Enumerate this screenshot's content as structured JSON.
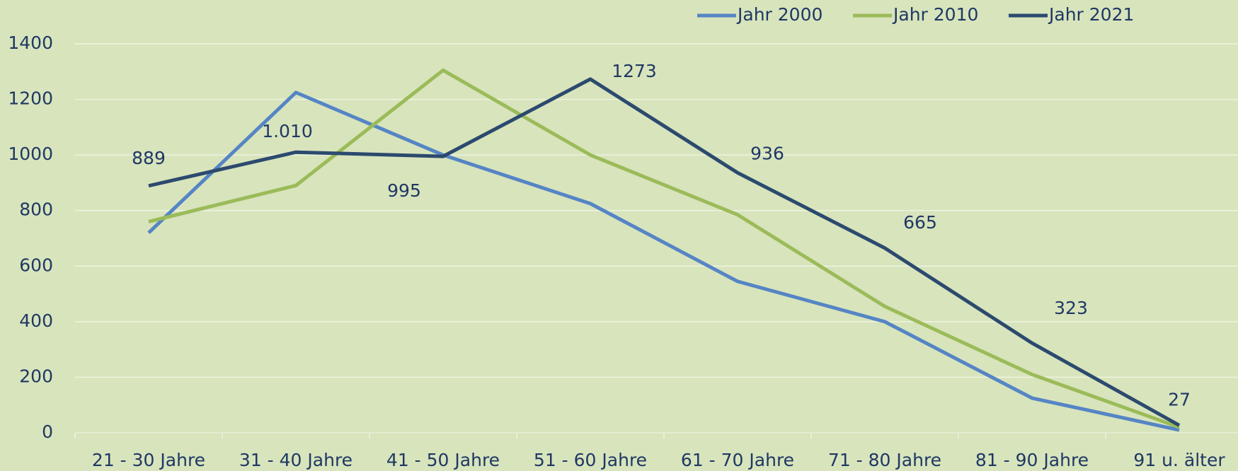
{
  "chart_data": {
    "type": "line",
    "categories": [
      "21 - 30 Jahre",
      "31 - 40 Jahre",
      "41 - 50 Jahre",
      "51 - 60 Jahre",
      "61 - 70 Jahre",
      "71 - 80 Jahre",
      "81 - 90 Jahre",
      "91 u. älter"
    ],
    "series": [
      {
        "name": "Jahr 2000",
        "color": "#5585c5",
        "values": [
          720,
          1225,
          1000,
          825,
          545,
          400,
          125,
          10
        ]
      },
      {
        "name": "Jahr 2010",
        "color": "#9bbb59",
        "values": [
          760,
          890,
          1305,
          1000,
          785,
          455,
          210,
          20
        ]
      },
      {
        "name": "Jahr 2021",
        "color": "#2c4a6e",
        "values": [
          889,
          1010,
          995,
          1273,
          936,
          665,
          323,
          27
        ],
        "value_labels": [
          "889",
          "1.010",
          "995",
          "1273",
          "936",
          "665",
          "323",
          "27"
        ]
      }
    ],
    "ylim": [
      0,
      1400
    ],
    "yticks": [
      0,
      200,
      400,
      600,
      800,
      1000,
      1200,
      1400
    ],
    "grid": true,
    "legend": "top"
  }
}
